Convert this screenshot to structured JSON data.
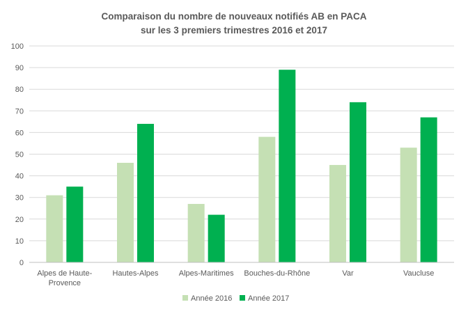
{
  "chart_data": {
    "type": "bar",
    "title": [
      "Comparaison du nombre de nouveaux notifiés AB en PACA",
      "sur les 3 premiers trimestres 2016 et 2017"
    ],
    "xlabel": "",
    "ylabel": "",
    "categories": [
      [
        "Alpes de Haute-",
        "Provence"
      ],
      [
        "Hautes-Alpes"
      ],
      [
        "Alpes-Maritimes"
      ],
      [
        "Bouches-du-Rhône"
      ],
      [
        "Var"
      ],
      [
        "Vaucluse"
      ]
    ],
    "series": [
      {
        "name": "Année 2016",
        "color": "#c5e0b4",
        "values": [
          31,
          46,
          27,
          58,
          45,
          53
        ]
      },
      {
        "name": "Année 2017",
        "color": "#00b050",
        "values": [
          35,
          64,
          22,
          89,
          74,
          67
        ]
      }
    ],
    "ylim": [
      0,
      100
    ],
    "yticks": [
      0,
      10,
      20,
      30,
      40,
      50,
      60,
      70,
      80,
      90,
      100
    ],
    "grid": true,
    "legend_position": "bottom-center",
    "colors": {
      "grid": "#d9d9d9",
      "axis": "#bfbfbf",
      "text": "#595959"
    }
  }
}
